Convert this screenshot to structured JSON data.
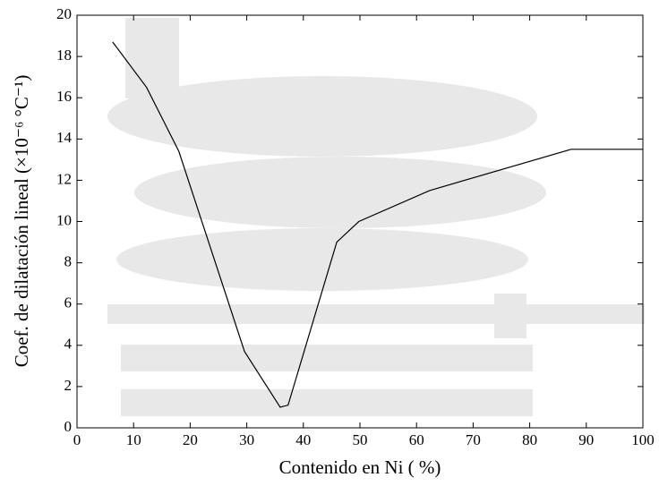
{
  "chart_data": {
    "type": "line",
    "x_label": "Contenido en Ni ( %)",
    "y_label": "Coef. de dilatación lineal (×10⁻⁶ °C⁻¹)",
    "x": [
      6.3,
      12.3,
      18.0,
      29.6,
      35.9,
      37.3,
      45.9,
      49.8,
      62.3,
      87.3,
      100
    ],
    "series": [
      {
        "color": "#000000",
        "values": [
          18.7,
          16.5,
          13.4,
          3.7,
          1.0,
          1.1,
          9.0,
          10.0,
          11.5,
          13.5,
          13.5
        ]
      }
    ],
    "xlim": [
      0,
      100
    ],
    "xticks": [
      0,
      10,
      20,
      30,
      40,
      50,
      60,
      70,
      80,
      90,
      100
    ],
    "ylim": [
      0,
      20
    ],
    "yticks": [
      0,
      2,
      4,
      6,
      8,
      10,
      12,
      14,
      16,
      18,
      20
    ],
    "grid": false
  }
}
